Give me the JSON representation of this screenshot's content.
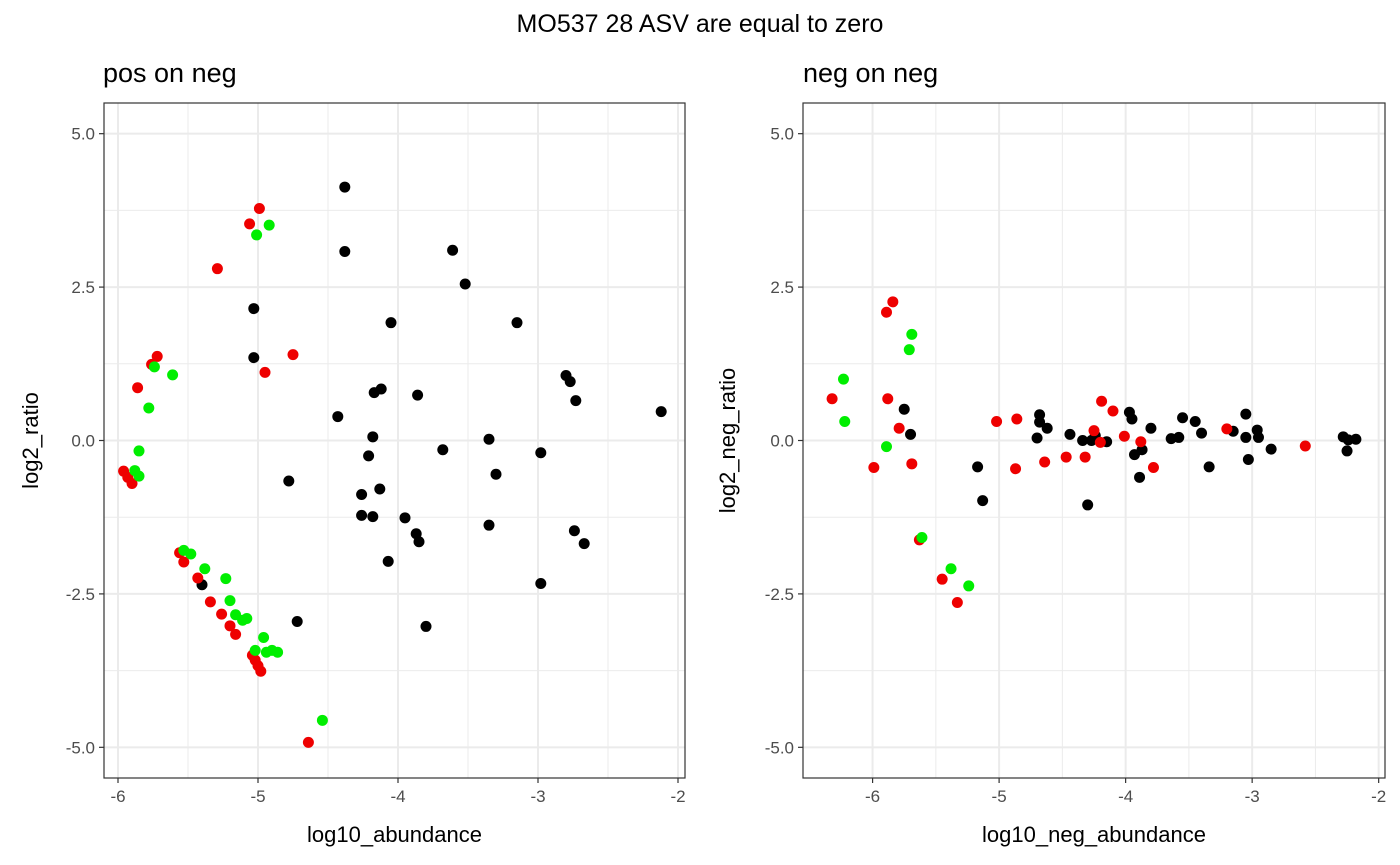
{
  "title": "MO537 28 ASV are equal to zero",
  "colors": {
    "black": "#000000",
    "red": "#ee0000",
    "green": "#00ee00",
    "grid": "#ebebeb",
    "frame": "#333333"
  },
  "chart_data": [
    {
      "type": "scatter",
      "title": "pos on neg",
      "xlabel": "log10_abundance",
      "ylabel": "log2_ratio",
      "xlim": [
        -6.1,
        -1.95
      ],
      "ylim": [
        -5.5,
        5.5
      ],
      "xticks": [
        -6,
        -5,
        -4,
        -3,
        -2
      ],
      "xtick_labels": [
        "-6",
        "-5",
        "-4",
        "-3",
        "-2"
      ],
      "yticks": [
        -5,
        -2.5,
        0,
        2.5,
        5
      ],
      "ytick_labels": [
        "-5.0",
        "-2.5",
        "0.0",
        "2.5",
        "5.0"
      ],
      "grid": true,
      "points": [
        {
          "x": -4.38,
          "y": 4.13,
          "color": "black"
        },
        {
          "x": -4.38,
          "y": 3.08,
          "color": "black"
        },
        {
          "x": -3.61,
          "y": 3.1,
          "color": "black"
        },
        {
          "x": -3.52,
          "y": 2.55,
          "color": "black"
        },
        {
          "x": -5.03,
          "y": 2.15,
          "color": "black"
        },
        {
          "x": -4.05,
          "y": 1.92,
          "color": "black"
        },
        {
          "x": -3.15,
          "y": 1.92,
          "color": "black"
        },
        {
          "x": -5.03,
          "y": 1.35,
          "color": "black"
        },
        {
          "x": -2.8,
          "y": 1.06,
          "color": "black"
        },
        {
          "x": -2.77,
          "y": 0.96,
          "color": "black"
        },
        {
          "x": -4.12,
          "y": 0.84,
          "color": "black"
        },
        {
          "x": -4.17,
          "y": 0.78,
          "color": "black"
        },
        {
          "x": -3.86,
          "y": 0.74,
          "color": "black"
        },
        {
          "x": -2.73,
          "y": 0.65,
          "color": "black"
        },
        {
          "x": -2.12,
          "y": 0.47,
          "color": "black"
        },
        {
          "x": -4.43,
          "y": 0.39,
          "color": "black"
        },
        {
          "x": -4.18,
          "y": 0.06,
          "color": "black"
        },
        {
          "x": -3.35,
          "y": 0.02,
          "color": "black"
        },
        {
          "x": -3.68,
          "y": -0.15,
          "color": "black"
        },
        {
          "x": -2.98,
          "y": -0.2,
          "color": "black"
        },
        {
          "x": -4.21,
          "y": -0.25,
          "color": "black"
        },
        {
          "x": -3.3,
          "y": -0.55,
          "color": "black"
        },
        {
          "x": -4.78,
          "y": -0.66,
          "color": "black"
        },
        {
          "x": -4.13,
          "y": -0.79,
          "color": "black"
        },
        {
          "x": -4.26,
          "y": -0.88,
          "color": "black"
        },
        {
          "x": -4.26,
          "y": -1.22,
          "color": "black"
        },
        {
          "x": -4.18,
          "y": -1.24,
          "color": "black"
        },
        {
          "x": -3.95,
          "y": -1.26,
          "color": "black"
        },
        {
          "x": -3.35,
          "y": -1.38,
          "color": "black"
        },
        {
          "x": -2.74,
          "y": -1.47,
          "color": "black"
        },
        {
          "x": -3.87,
          "y": -1.52,
          "color": "black"
        },
        {
          "x": -3.85,
          "y": -1.65,
          "color": "black"
        },
        {
          "x": -2.67,
          "y": -1.68,
          "color": "black"
        },
        {
          "x": -4.07,
          "y": -1.97,
          "color": "black"
        },
        {
          "x": -2.98,
          "y": -2.33,
          "color": "black"
        },
        {
          "x": -5.4,
          "y": -2.35,
          "color": "black"
        },
        {
          "x": -4.72,
          "y": -2.95,
          "color": "black"
        },
        {
          "x": -3.8,
          "y": -3.03,
          "color": "black"
        },
        {
          "x": -4.99,
          "y": 3.78,
          "color": "red"
        },
        {
          "x": -5.06,
          "y": 3.53,
          "color": "red"
        },
        {
          "x": -5.29,
          "y": 2.8,
          "color": "red"
        },
        {
          "x": -4.75,
          "y": 1.4,
          "color": "red"
        },
        {
          "x": -5.72,
          "y": 1.37,
          "color": "red"
        },
        {
          "x": -5.76,
          "y": 1.24,
          "color": "red"
        },
        {
          "x": -4.95,
          "y": 1.11,
          "color": "red"
        },
        {
          "x": -5.86,
          "y": 0.86,
          "color": "red"
        },
        {
          "x": -5.96,
          "y": -0.5,
          "color": "red"
        },
        {
          "x": -5.93,
          "y": -0.6,
          "color": "red"
        },
        {
          "x": -5.9,
          "y": -0.7,
          "color": "red"
        },
        {
          "x": -5.56,
          "y": -1.83,
          "color": "red"
        },
        {
          "x": -5.53,
          "y": -1.98,
          "color": "red"
        },
        {
          "x": -5.43,
          "y": -2.24,
          "color": "red"
        },
        {
          "x": -5.34,
          "y": -2.63,
          "color": "red"
        },
        {
          "x": -5.26,
          "y": -2.83,
          "color": "red"
        },
        {
          "x": -5.2,
          "y": -3.02,
          "color": "red"
        },
        {
          "x": -5.16,
          "y": -3.16,
          "color": "red"
        },
        {
          "x": -5.04,
          "y": -3.5,
          "color": "red"
        },
        {
          "x": -5.02,
          "y": -3.58,
          "color": "red"
        },
        {
          "x": -5.0,
          "y": -3.67,
          "color": "red"
        },
        {
          "x": -4.98,
          "y": -3.76,
          "color": "red"
        },
        {
          "x": -4.64,
          "y": -4.92,
          "color": "red"
        },
        {
          "x": -4.92,
          "y": 3.51,
          "color": "green"
        },
        {
          "x": -5.01,
          "y": 3.35,
          "color": "green"
        },
        {
          "x": -5.61,
          "y": 1.07,
          "color": "green"
        },
        {
          "x": -5.74,
          "y": 1.2,
          "color": "green"
        },
        {
          "x": -5.78,
          "y": 0.53,
          "color": "green"
        },
        {
          "x": -5.85,
          "y": -0.17,
          "color": "green"
        },
        {
          "x": -5.88,
          "y": -0.49,
          "color": "green"
        },
        {
          "x": -5.85,
          "y": -0.58,
          "color": "green"
        },
        {
          "x": -5.53,
          "y": -1.79,
          "color": "green"
        },
        {
          "x": -5.48,
          "y": -1.85,
          "color": "green"
        },
        {
          "x": -5.38,
          "y": -2.09,
          "color": "green"
        },
        {
          "x": -5.23,
          "y": -2.25,
          "color": "green"
        },
        {
          "x": -5.2,
          "y": -2.61,
          "color": "green"
        },
        {
          "x": -5.16,
          "y": -2.84,
          "color": "green"
        },
        {
          "x": -5.11,
          "y": -2.93,
          "color": "green"
        },
        {
          "x": -5.08,
          "y": -2.9,
          "color": "green"
        },
        {
          "x": -4.96,
          "y": -3.21,
          "color": "green"
        },
        {
          "x": -5.02,
          "y": -3.42,
          "color": "green"
        },
        {
          "x": -4.94,
          "y": -3.45,
          "color": "green"
        },
        {
          "x": -4.9,
          "y": -3.42,
          "color": "green"
        },
        {
          "x": -4.86,
          "y": -3.45,
          "color": "green"
        },
        {
          "x": -4.54,
          "y": -4.56,
          "color": "green"
        }
      ]
    },
    {
      "type": "scatter",
      "title": "neg on neg",
      "xlabel": "log10_neg_abundance",
      "ylabel": "log2_neg_ratio",
      "xlim": [
        -6.55,
        -1.95
      ],
      "ylim": [
        -5.5,
        5.5
      ],
      "xticks": [
        -6,
        -5,
        -4,
        -3,
        -2
      ],
      "xtick_labels": [
        "-6",
        "-5",
        "-4",
        "-3",
        "-2"
      ],
      "yticks": [
        -5,
        -2.5,
        0,
        2.5,
        5
      ],
      "ytick_labels": [
        "-5.0",
        "-2.5",
        "0.0",
        "2.5",
        "5.0"
      ],
      "grid": true,
      "points": [
        {
          "x": -5.75,
          "y": 0.51,
          "color": "black"
        },
        {
          "x": -5.7,
          "y": 0.1,
          "color": "black"
        },
        {
          "x": -5.17,
          "y": -0.43,
          "color": "black"
        },
        {
          "x": -5.13,
          "y": -0.98,
          "color": "black"
        },
        {
          "x": -4.68,
          "y": 0.42,
          "color": "black"
        },
        {
          "x": -4.68,
          "y": 0.3,
          "color": "black"
        },
        {
          "x": -4.62,
          "y": 0.2,
          "color": "black"
        },
        {
          "x": -4.7,
          "y": 0.04,
          "color": "black"
        },
        {
          "x": -4.44,
          "y": 0.1,
          "color": "black"
        },
        {
          "x": -4.34,
          "y": 0.0,
          "color": "black"
        },
        {
          "x": -4.27,
          "y": 0.0,
          "color": "black"
        },
        {
          "x": -4.24,
          "y": 0.08,
          "color": "black"
        },
        {
          "x": -4.15,
          "y": -0.02,
          "color": "black"
        },
        {
          "x": -4.3,
          "y": -1.05,
          "color": "black"
        },
        {
          "x": -3.97,
          "y": 0.46,
          "color": "black"
        },
        {
          "x": -3.95,
          "y": 0.35,
          "color": "black"
        },
        {
          "x": -3.87,
          "y": -0.15,
          "color": "black"
        },
        {
          "x": -3.93,
          "y": -0.23,
          "color": "black"
        },
        {
          "x": -3.89,
          "y": -0.6,
          "color": "black"
        },
        {
          "x": -3.8,
          "y": 0.2,
          "color": "black"
        },
        {
          "x": -3.64,
          "y": 0.03,
          "color": "black"
        },
        {
          "x": -3.58,
          "y": 0.05,
          "color": "black"
        },
        {
          "x": -3.55,
          "y": 0.37,
          "color": "black"
        },
        {
          "x": -3.45,
          "y": 0.31,
          "color": "black"
        },
        {
          "x": -3.4,
          "y": 0.12,
          "color": "black"
        },
        {
          "x": -3.34,
          "y": -0.43,
          "color": "black"
        },
        {
          "x": -3.15,
          "y": 0.15,
          "color": "black"
        },
        {
          "x": -3.05,
          "y": 0.43,
          "color": "black"
        },
        {
          "x": -3.05,
          "y": 0.05,
          "color": "black"
        },
        {
          "x": -3.03,
          "y": -0.31,
          "color": "black"
        },
        {
          "x": -2.96,
          "y": 0.17,
          "color": "black"
        },
        {
          "x": -2.95,
          "y": 0.05,
          "color": "black"
        },
        {
          "x": -2.85,
          "y": -0.14,
          "color": "black"
        },
        {
          "x": -2.28,
          "y": 0.06,
          "color": "black"
        },
        {
          "x": -2.25,
          "y": -0.17,
          "color": "black"
        },
        {
          "x": -2.24,
          "y": 0.01,
          "color": "black"
        },
        {
          "x": -2.18,
          "y": 0.02,
          "color": "black"
        },
        {
          "x": -6.32,
          "y": 0.68,
          "color": "red"
        },
        {
          "x": -5.84,
          "y": 2.26,
          "color": "red"
        },
        {
          "x": -5.89,
          "y": 2.09,
          "color": "red"
        },
        {
          "x": -5.88,
          "y": 0.68,
          "color": "red"
        },
        {
          "x": -5.79,
          "y": 0.2,
          "color": "red"
        },
        {
          "x": -5.99,
          "y": -0.44,
          "color": "red"
        },
        {
          "x": -5.69,
          "y": -0.38,
          "color": "red"
        },
        {
          "x": -5.63,
          "y": -1.62,
          "color": "red"
        },
        {
          "x": -5.45,
          "y": -2.26,
          "color": "red"
        },
        {
          "x": -5.33,
          "y": -2.64,
          "color": "red"
        },
        {
          "x": -5.02,
          "y": 0.31,
          "color": "red"
        },
        {
          "x": -4.86,
          "y": 0.35,
          "color": "red"
        },
        {
          "x": -4.87,
          "y": -0.46,
          "color": "red"
        },
        {
          "x": -4.64,
          "y": -0.35,
          "color": "red"
        },
        {
          "x": -4.47,
          "y": -0.27,
          "color": "red"
        },
        {
          "x": -4.32,
          "y": -0.27,
          "color": "red"
        },
        {
          "x": -4.25,
          "y": 0.16,
          "color": "red"
        },
        {
          "x": -4.19,
          "y": 0.64,
          "color": "red"
        },
        {
          "x": -4.2,
          "y": -0.03,
          "color": "red"
        },
        {
          "x": -4.1,
          "y": 0.48,
          "color": "red"
        },
        {
          "x": -4.01,
          "y": 0.07,
          "color": "red"
        },
        {
          "x": -3.88,
          "y": -0.02,
          "color": "red"
        },
        {
          "x": -3.78,
          "y": -0.44,
          "color": "red"
        },
        {
          "x": -3.2,
          "y": 0.19,
          "color": "red"
        },
        {
          "x": -2.58,
          "y": -0.09,
          "color": "red"
        },
        {
          "x": -6.23,
          "y": 1.0,
          "color": "green"
        },
        {
          "x": -6.22,
          "y": 0.31,
          "color": "green"
        },
        {
          "x": -5.89,
          "y": -0.1,
          "color": "green"
        },
        {
          "x": -5.69,
          "y": 1.73,
          "color": "green"
        },
        {
          "x": -5.71,
          "y": 1.48,
          "color": "green"
        },
        {
          "x": -5.61,
          "y": -1.58,
          "color": "green"
        },
        {
          "x": -5.38,
          "y": -2.09,
          "color": "green"
        },
        {
          "x": -5.24,
          "y": -2.37,
          "color": "green"
        }
      ]
    }
  ]
}
